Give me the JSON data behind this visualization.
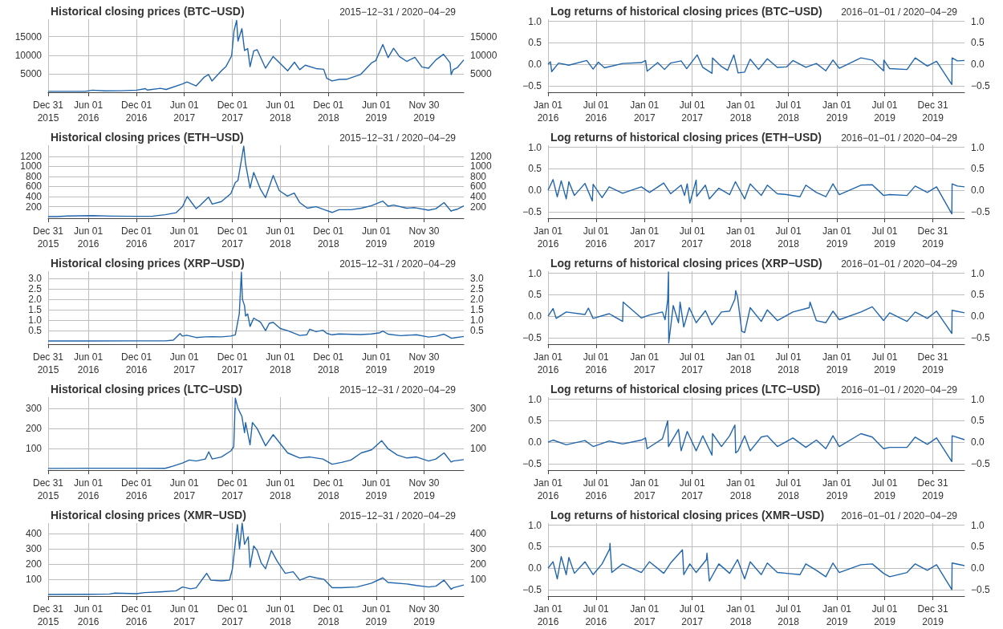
{
  "chart_data": [
    {
      "type": "line",
      "title": "Historical closing prices (BTC−USD)",
      "subtitle": "2015−12−31 / 2020−04−29",
      "color": "#2166ac",
      "marker": "none",
      "grid": true,
      "x": [
        "2015-12-31",
        "2016-03-01",
        "2016-05-20",
        "2016-06-16",
        "2016-08-02",
        "2016-10-01",
        "2016-12-01",
        "2017-01-04",
        "2017-01-11",
        "2017-03-02",
        "2017-03-24",
        "2017-05-25",
        "2017-06-11",
        "2017-07-16",
        "2017-08-17",
        "2017-09-01",
        "2017-09-14",
        "2017-10-20",
        "2017-11-07",
        "2017-11-28",
        "2017-12-07",
        "2017-12-17",
        "2017-12-22",
        "2018-01-06",
        "2018-01-16",
        "2018-01-28",
        "2018-02-06",
        "2018-02-20",
        "2018-03-05",
        "2018-04-06",
        "2018-05-05",
        "2018-06-29",
        "2018-07-25",
        "2018-08-14",
        "2018-09-04",
        "2018-10-15",
        "2018-11-13",
        "2018-11-25",
        "2018-12-15",
        "2019-01-10",
        "2019-02-08",
        "2019-04-02",
        "2019-05-14",
        "2019-05-30",
        "2019-06-26",
        "2019-07-16",
        "2019-08-06",
        "2019-08-28",
        "2019-09-25",
        "2019-10-26",
        "2019-11-22",
        "2019-12-17",
        "2020-01-14",
        "2020-02-12",
        "2020-03-08",
        "2020-03-12",
        "2020-03-20",
        "2020-04-05",
        "2020-04-29"
      ],
      "values": [
        430,
        435,
        445,
        750,
        560,
        610,
        750,
        1150,
        780,
        1250,
        940,
        2400,
        2950,
        1900,
        4300,
        4900,
        3200,
        5900,
        7100,
        9900,
        16500,
        19300,
        13800,
        17100,
        11300,
        11800,
        7000,
        11200,
        11500,
        6600,
        9700,
        5900,
        8200,
        6200,
        7400,
        6500,
        6300,
        3900,
        3200,
        3600,
        3650,
        4900,
        8000,
        8600,
        12900,
        9400,
        11900,
        9700,
        8400,
        9500,
        6900,
        6600,
        8800,
        10300,
        8000,
        4900,
        6200,
        6800,
        8800
      ],
      "xlim": [
        "2015-12-31",
        "2020-04-29"
      ],
      "xticks": [
        {
          "value": "2015-12-31",
          "label": "Dec 31\n2015"
        },
        {
          "value": "2016-06-01",
          "label": "Jun 01\n2016"
        },
        {
          "value": "2016-12-01",
          "label": "Dec 01\n2016"
        },
        {
          "value": "2017-06-01",
          "label": "Jun 01\n2017"
        },
        {
          "value": "2017-12-01",
          "label": "Dec 01\n2017"
        },
        {
          "value": "2018-06-01",
          "label": "Jun 01\n2018"
        },
        {
          "value": "2018-12-01",
          "label": "Dec 01\n2018"
        },
        {
          "value": "2019-06-01",
          "label": "Jun 01\n2019"
        },
        {
          "value": "2019-11-30",
          "label": "Nov 30\n2019"
        }
      ],
      "ylim": [
        200,
        19600
      ],
      "yticks": [
        5000,
        10000,
        15000
      ],
      "y2lim": [
        200,
        19600
      ],
      "y2ticks": [
        5000,
        10000,
        15000
      ]
    },
    {
      "type": "line",
      "title": "Log returns of historical closing prices (BTC−USD)",
      "subtitle": "2016−01−01 / 2020−04−29",
      "color": "#2166ac",
      "marker": "none",
      "grid": true,
      "x": [
        "2016-01-01",
        "2016-01-10",
        "2016-01-15",
        "2016-02-10",
        "2016-03-20",
        "2016-05-27",
        "2016-06-20",
        "2016-07-10",
        "2016-08-02",
        "2016-10-10",
        "2016-12-20",
        "2017-01-05",
        "2017-01-11",
        "2017-02-20",
        "2017-03-18",
        "2017-04-10",
        "2017-05-20",
        "2017-06-10",
        "2017-07-20",
        "2017-08-10",
        "2017-09-14",
        "2017-09-16",
        "2017-10-20",
        "2017-11-12",
        "2017-12-06",
        "2017-12-22",
        "2018-01-16",
        "2018-02-06",
        "2018-03-10",
        "2018-04-12",
        "2018-05-20",
        "2018-06-24",
        "2018-07-18",
        "2018-09-05",
        "2018-10-15",
        "2018-11-20",
        "2018-12-17",
        "2019-01-10",
        "2019-04-02",
        "2019-05-15",
        "2019-06-27",
        "2019-06-28",
        "2019-07-20",
        "2019-09-24",
        "2019-10-25",
        "2019-12-10",
        "2020-01-14",
        "2020-03-12",
        "2020-03-13",
        "2020-04-02",
        "2020-04-29"
      ],
      "values": [
        0,
        0.06,
        -0.17,
        0.03,
        -0.02,
        0.09,
        -0.11,
        0.05,
        -0.08,
        0.02,
        0.04,
        0.09,
        -0.16,
        0.04,
        -0.12,
        0.03,
        0.08,
        -0.1,
        0.22,
        -0.07,
        -0.21,
        0.15,
        -0.05,
        -0.14,
        0.22,
        -0.2,
        -0.18,
        0.12,
        -0.12,
        0.13,
        -0.07,
        -0.06,
        0.09,
        -0.07,
        0.02,
        -0.15,
        0.1,
        -0.09,
        0.15,
        0.1,
        -0.15,
        0.1,
        -0.1,
        -0.12,
        0.15,
        -0.04,
        0.07,
        -0.47,
        0.15,
        0.08,
        0.09
      ],
      "xlim": [
        "2016-01-01",
        "2020-04-29"
      ],
      "xticks": [
        {
          "value": "2016-01-01",
          "label": "Jan 01\n2016"
        },
        {
          "value": "2016-07-01",
          "label": "Jul 01\n2016"
        },
        {
          "value": "2017-01-01",
          "label": "Jan 01\n2017"
        },
        {
          "value": "2017-07-01",
          "label": "Jul 01\n2017"
        },
        {
          "value": "2018-01-01",
          "label": "Jan 01\n2018"
        },
        {
          "value": "2018-07-01",
          "label": "Jul 01\n2018"
        },
        {
          "value": "2019-01-01",
          "label": "Jan 01\n2019"
        },
        {
          "value": "2019-07-01",
          "label": "Jul 01\n2019"
        },
        {
          "value": "2019-12-31",
          "label": "Dec 31\n2019"
        }
      ],
      "ylim": [
        -0.65,
        1.05
      ],
      "yticks": [
        {
          "value": -0.5,
          "label": "−0.5"
        },
        {
          "value": 0,
          "label": "0.0"
        },
        0.5,
        {
          "value": 1,
          "label": "1.0"
        }
      ],
      "y2lim": [
        -0.65,
        1.05
      ],
      "y2ticks": [
        {
          "value": -0.5,
          "label": "−0.5"
        },
        {
          "value": 0,
          "label": "0.0"
        },
        0.5,
        {
          "value": 1,
          "label": "1.0"
        }
      ]
    },
    {
      "type": "line",
      "title": "Historical closing prices (ETH−USD)",
      "subtitle": "2015−12−31 / 2020−04−29",
      "color": "#2166ac",
      "marker": "none",
      "grid": true,
      "x": [
        "2015-12-31",
        "2016-02-01",
        "2016-03-13",
        "2016-06-17",
        "2016-09-01",
        "2016-12-01",
        "2017-02-01",
        "2017-03-20",
        "2017-05-01",
        "2017-05-25",
        "2017-06-12",
        "2017-07-16",
        "2017-08-01",
        "2017-09-01",
        "2017-09-15",
        "2017-10-20",
        "2017-11-25",
        "2017-12-12",
        "2017-12-22",
        "2018-01-13",
        "2018-01-20",
        "2018-02-06",
        "2018-02-20",
        "2018-03-18",
        "2018-04-06",
        "2018-05-05",
        "2018-05-28",
        "2018-06-28",
        "2018-07-24",
        "2018-08-14",
        "2018-09-12",
        "2018-10-15",
        "2018-11-20",
        "2018-12-15",
        "2019-01-10",
        "2019-02-25",
        "2019-04-05",
        "2019-05-14",
        "2019-06-26",
        "2019-07-16",
        "2019-08-06",
        "2019-09-25",
        "2019-10-26",
        "2019-12-17",
        "2020-01-14",
        "2020-02-14",
        "2020-03-12",
        "2020-03-20",
        "2020-04-05",
        "2020-04-29"
      ],
      "values": [
        0.9,
        2.5,
        14,
        21,
        12,
        8,
        11,
        40,
        80,
        200,
        400,
        160,
        230,
        390,
        250,
        300,
        460,
        680,
        720,
        1400,
        1050,
        570,
        880,
        540,
        380,
        820,
        520,
        410,
        470,
        280,
        170,
        200,
        130,
        85,
        140,
        140,
        170,
        220,
        310,
        210,
        230,
        170,
        180,
        130,
        160,
        280,
        110,
        130,
        150,
        215
      ],
      "xlim": [
        "2015-12-31",
        "2020-04-29"
      ],
      "xticks": [
        {
          "value": "2015-12-31",
          "label": "Dec 31\n2015"
        },
        {
          "value": "2016-06-01",
          "label": "Jun 01\n2016"
        },
        {
          "value": "2016-12-01",
          "label": "Dec 01\n2016"
        },
        {
          "value": "2017-06-01",
          "label": "Jun 01\n2017"
        },
        {
          "value": "2017-12-01",
          "label": "Dec 01\n2017"
        },
        {
          "value": "2018-06-01",
          "label": "Jun 01\n2018"
        },
        {
          "value": "2018-12-01",
          "label": "Dec 01\n2018"
        },
        {
          "value": "2019-06-01",
          "label": "Jun 01\n2019"
        },
        {
          "value": "2019-11-30",
          "label": "Nov 30\n2019"
        }
      ],
      "ylim": [
        -30,
        1420
      ],
      "yticks": [
        200,
        400,
        600,
        800,
        1000,
        1200
      ],
      "y2lim": [
        -30,
        1420
      ],
      "y2ticks": [
        200,
        400,
        600,
        800,
        1000,
        1200
      ]
    },
    {
      "type": "line",
      "title": "Log returns of historical closing prices (ETH−USD)",
      "subtitle": "2016−01−01 / 2020−04−29",
      "color": "#2166ac",
      "marker": "none",
      "grid": true,
      "x": [
        "2016-01-01",
        "2016-01-20",
        "2016-02-05",
        "2016-02-20",
        "2016-03-10",
        "2016-03-20",
        "2016-04-10",
        "2016-05-20",
        "2016-06-17",
        "2016-06-20",
        "2016-07-24",
        "2016-08-20",
        "2016-10-10",
        "2016-12-20",
        "2017-01-20",
        "2017-03-15",
        "2017-04-10",
        "2017-05-20",
        "2017-06-02",
        "2017-06-12",
        "2017-06-22",
        "2017-07-16",
        "2017-07-18",
        "2017-08-20",
        "2017-09-04",
        "2017-10-10",
        "2017-11-20",
        "2017-12-12",
        "2018-01-16",
        "2018-02-06",
        "2018-03-20",
        "2018-04-12",
        "2018-05-20",
        "2018-06-24",
        "2018-08-14",
        "2018-09-05",
        "2018-10-15",
        "2018-11-20",
        "2018-12-17",
        "2019-01-10",
        "2019-04-02",
        "2019-05-15",
        "2019-06-27",
        "2019-07-20",
        "2019-09-24",
        "2019-10-25",
        "2019-12-10",
        "2020-01-14",
        "2020-03-12",
        "2020-03-13",
        "2020-04-02",
        "2020-04-29"
      ],
      "values": [
        0,
        0.25,
        -0.15,
        0.22,
        -0.2,
        0.2,
        -0.12,
        0.16,
        -0.25,
        0.14,
        -0.17,
        0.08,
        -0.07,
        0.08,
        -0.05,
        0.17,
        -0.08,
        0.12,
        -0.12,
        0.15,
        -0.3,
        0.24,
        -0.14,
        0.12,
        -0.2,
        0.05,
        -0.1,
        0.2,
        -0.2,
        0.15,
        -0.12,
        0.12,
        -0.08,
        -0.1,
        -0.15,
        0.12,
        -0.05,
        -0.15,
        0.15,
        -0.1,
        0.12,
        0.13,
        -0.12,
        -0.1,
        -0.12,
        0.1,
        -0.05,
        0.08,
        -0.55,
        0.15,
        0.1,
        0.08
      ],
      "xlim": [
        "2016-01-01",
        "2020-04-29"
      ],
      "xticks": [
        {
          "value": "2016-01-01",
          "label": "Jan 01\n2016"
        },
        {
          "value": "2016-07-01",
          "label": "Jul 01\n2016"
        },
        {
          "value": "2017-01-01",
          "label": "Jan 01\n2017"
        },
        {
          "value": "2017-07-01",
          "label": "Jul 01\n2017"
        },
        {
          "value": "2018-01-01",
          "label": "Jan 01\n2018"
        },
        {
          "value": "2018-07-01",
          "label": "Jul 01\n2018"
        },
        {
          "value": "2019-01-01",
          "label": "Jan 01\n2019"
        },
        {
          "value": "2019-07-01",
          "label": "Jul 01\n2019"
        },
        {
          "value": "2019-12-31",
          "label": "Dec 31\n2019"
        }
      ],
      "ylim": [
        -0.65,
        1.05
      ],
      "yticks": [
        {
          "value": -0.5,
          "label": "−0.5"
        },
        {
          "value": 0,
          "label": "0.0"
        },
        0.5,
        {
          "value": 1,
          "label": "1.0"
        }
      ],
      "y2lim": [
        -0.65,
        1.05
      ],
      "y2ticks": [
        {
          "value": -0.5,
          "label": "−0.5"
        },
        {
          "value": 0,
          "label": "0.0"
        },
        0.5,
        {
          "value": 1,
          "label": "1.0"
        }
      ]
    },
    {
      "type": "line",
      "title": "Historical closing prices (XRP−USD)",
      "subtitle": "2015−12−31 / 2020−04−29",
      "color": "#2166ac",
      "marker": "none",
      "grid": true,
      "x": [
        "2015-12-31",
        "2016-06-01",
        "2016-12-01",
        "2017-03-20",
        "2017-04-20",
        "2017-05-16",
        "2017-05-24",
        "2017-06-10",
        "2017-07-16",
        "2017-08-20",
        "2017-09-15",
        "2017-10-20",
        "2017-11-25",
        "2017-12-12",
        "2017-12-21",
        "2017-12-27",
        "2018-01-04",
        "2018-01-08",
        "2018-01-16",
        "2018-01-20",
        "2018-01-28",
        "2018-02-06",
        "2018-02-20",
        "2018-03-18",
        "2018-04-06",
        "2018-04-20",
        "2018-05-05",
        "2018-06-01",
        "2018-06-29",
        "2018-08-14",
        "2018-09-10",
        "2018-09-21",
        "2018-10-15",
        "2018-11-10",
        "2018-11-25",
        "2018-12-15",
        "2019-01-10",
        "2019-04-02",
        "2019-05-14",
        "2019-06-15",
        "2019-06-26",
        "2019-07-16",
        "2019-09-01",
        "2019-11-01",
        "2019-12-17",
        "2020-01-14",
        "2020-02-14",
        "2020-03-12",
        "2020-03-20",
        "2020-04-29"
      ],
      "values": [
        0.006,
        0.006,
        0.007,
        0.008,
        0.04,
        0.36,
        0.24,
        0.28,
        0.17,
        0.2,
        0.21,
        0.2,
        0.24,
        0.3,
        0.9,
        1.3,
        3.3,
        2.0,
        1.7,
        1.2,
        1.3,
        0.7,
        1.1,
        0.9,
        0.5,
        0.85,
        0.9,
        0.6,
        0.5,
        0.27,
        0.3,
        0.57,
        0.45,
        0.52,
        0.37,
        0.3,
        0.34,
        0.31,
        0.34,
        0.4,
        0.48,
        0.33,
        0.26,
        0.3,
        0.19,
        0.23,
        0.33,
        0.14,
        0.15,
        0.22
      ],
      "xlim": [
        "2015-12-31",
        "2020-04-29"
      ],
      "xticks": [
        {
          "value": "2015-12-31",
          "label": "Dec 31\n2015"
        },
        {
          "value": "2016-06-01",
          "label": "Jun 01\n2016"
        },
        {
          "value": "2016-12-01",
          "label": "Dec 01\n2016"
        },
        {
          "value": "2017-06-01",
          "label": "Jun 01\n2017"
        },
        {
          "value": "2017-12-01",
          "label": "Dec 01\n2017"
        },
        {
          "value": "2018-06-01",
          "label": "Jun 01\n2018"
        },
        {
          "value": "2018-12-01",
          "label": "Dec 01\n2018"
        },
        {
          "value": "2019-06-01",
          "label": "Jun 01\n2019"
        },
        {
          "value": "2019-11-30",
          "label": "Nov 30\n2019"
        }
      ],
      "ylim": [
        -0.15,
        3.35
      ],
      "yticks": [
        0.5,
        {
          "value": 1,
          "label": "1.0"
        },
        1.5,
        {
          "value": 2,
          "label": "2.0"
        },
        2.5,
        {
          "value": 3,
          "label": "3.0"
        }
      ],
      "y2lim": [
        -0.15,
        3.35
      ],
      "y2ticks": [
        0.5,
        {
          "value": 1,
          "label": "1.0"
        },
        1.5,
        {
          "value": 2,
          "label": "2.0"
        },
        2.5,
        {
          "value": 3,
          "label": "3.0"
        }
      ]
    },
    {
      "type": "line",
      "title": "Log returns of historical closing prices (XRP−USD)",
      "subtitle": "2016−01−01 / 2020−04−29",
      "color": "#2166ac",
      "marker": "none",
      "grid": true,
      "x": [
        "2016-01-01",
        "2016-01-20",
        "2016-02-01",
        "2016-03-10",
        "2016-05-20",
        "2016-06-02",
        "2016-06-20",
        "2016-08-20",
        "2016-10-10",
        "2016-10-12",
        "2016-12-20",
        "2017-01-20",
        "2017-03-10",
        "2017-03-20",
        "2017-03-30",
        "2017-04-02",
        "2017-04-03",
        "2017-04-20",
        "2017-05-10",
        "2017-05-16",
        "2017-05-30",
        "2017-06-20",
        "2017-07-16",
        "2017-08-20",
        "2017-09-14",
        "2017-10-20",
        "2017-11-20",
        "2017-12-10",
        "2017-12-13",
        "2017-12-20",
        "2018-01-05",
        "2018-01-16",
        "2018-02-06",
        "2018-03-20",
        "2018-04-12",
        "2018-05-20",
        "2018-07-18",
        "2018-09-18",
        "2018-09-21",
        "2018-10-15",
        "2018-11-20",
        "2018-12-17",
        "2019-01-10",
        "2019-04-02",
        "2019-05-15",
        "2019-06-27",
        "2019-07-20",
        "2019-09-24",
        "2019-10-25",
        "2019-12-10",
        "2020-01-14",
        "2020-03-12",
        "2020-03-13",
        "2020-04-29"
      ],
      "values": [
        0,
        0.18,
        -0.05,
        0.1,
        0.04,
        0.19,
        -0.05,
        0.06,
        -0.12,
        0.33,
        -0.04,
        0.03,
        0.1,
        -0.08,
        0.38,
        1.03,
        -0.62,
        0.25,
        -0.15,
        0.33,
        -0.25,
        0.2,
        -0.15,
        0.13,
        -0.2,
        0.1,
        0.12,
        0.4,
        0.6,
        0.45,
        -0.35,
        -0.38,
        0.2,
        -0.12,
        0.15,
        -0.1,
        0.1,
        0.2,
        0.33,
        -0.1,
        -0.15,
        0.12,
        -0.08,
        0.1,
        0.22,
        -0.1,
        0.08,
        -0.12,
        0.1,
        -0.05,
        0.12,
        -0.4,
        0.14,
        0.08
      ],
      "xlim": [
        "2016-01-01",
        "2020-04-29"
      ],
      "xticks": [
        {
          "value": "2016-01-01",
          "label": "Jan 01\n2016"
        },
        {
          "value": "2016-07-01",
          "label": "Jul 01\n2016"
        },
        {
          "value": "2017-01-01",
          "label": "Jan 01\n2017"
        },
        {
          "value": "2017-07-01",
          "label": "Jul 01\n2017"
        },
        {
          "value": "2018-01-01",
          "label": "Jan 01\n2018"
        },
        {
          "value": "2018-07-01",
          "label": "Jul 01\n2018"
        },
        {
          "value": "2019-01-01",
          "label": "Jan 01\n2019"
        },
        {
          "value": "2019-07-01",
          "label": "Jul 01\n2019"
        },
        {
          "value": "2019-12-31",
          "label": "Dec 31\n2019"
        }
      ],
      "ylim": [
        -0.65,
        1.05
      ],
      "yticks": [
        {
          "value": -0.5,
          "label": "−0.5"
        },
        {
          "value": 0,
          "label": "0.0"
        },
        0.5,
        {
          "value": 1,
          "label": "1.0"
        }
      ],
      "y2lim": [
        -0.65,
        1.05
      ],
      "y2ticks": [
        {
          "value": -0.5,
          "label": "−0.5"
        },
        {
          "value": 0,
          "label": "0.0"
        },
        0.5,
        {
          "value": 1,
          "label": "1.0"
        }
      ]
    },
    {
      "type": "line",
      "title": "Historical closing prices (LTC−USD)",
      "subtitle": "2015−12−31 / 2020−04−29",
      "color": "#2166ac",
      "marker": "none",
      "grid": true,
      "x": [
        "2015-12-31",
        "2016-06-01",
        "2016-12-01",
        "2017-03-20",
        "2017-04-20",
        "2017-05-25",
        "2017-06-20",
        "2017-07-16",
        "2017-08-20",
        "2017-09-02",
        "2017-09-15",
        "2017-10-20",
        "2017-11-25",
        "2017-12-06",
        "2017-12-12",
        "2017-12-22",
        "2018-01-06",
        "2018-01-16",
        "2018-01-20",
        "2018-02-06",
        "2018-02-15",
        "2018-03-05",
        "2018-04-06",
        "2018-05-05",
        "2018-06-29",
        "2018-08-14",
        "2018-09-21",
        "2018-11-10",
        "2018-12-15",
        "2019-01-20",
        "2019-02-25",
        "2019-04-05",
        "2019-05-14",
        "2019-06-22",
        "2019-07-16",
        "2019-08-20",
        "2019-09-25",
        "2019-11-01",
        "2019-12-17",
        "2020-01-14",
        "2020-02-14",
        "2020-03-12",
        "2020-03-20",
        "2020-04-29"
      ],
      "values": [
        3.5,
        4.5,
        4.4,
        4,
        15,
        30,
        45,
        40,
        50,
        85,
        50,
        60,
        90,
        110,
        350,
        300,
        260,
        180,
        230,
        120,
        230,
        200,
        115,
        170,
        80,
        55,
        60,
        50,
        24,
        33,
        45,
        80,
        95,
        140,
        100,
        70,
        55,
        60,
        40,
        50,
        80,
        35,
        40,
        47
      ],
      "xlim": [
        "2015-12-31",
        "2020-04-29"
      ],
      "xticks": [
        {
          "value": "2015-12-31",
          "label": "Dec 31\n2015"
        },
        {
          "value": "2016-06-01",
          "label": "Jun 01\n2016"
        },
        {
          "value": "2016-12-01",
          "label": "Dec 01\n2016"
        },
        {
          "value": "2017-06-01",
          "label": "Jun 01\n2017"
        },
        {
          "value": "2017-12-01",
          "label": "Dec 01\n2017"
        },
        {
          "value": "2018-06-01",
          "label": "Jun 01\n2018"
        },
        {
          "value": "2018-12-01",
          "label": "Dec 01\n2018"
        },
        {
          "value": "2019-06-01",
          "label": "Jun 01\n2019"
        },
        {
          "value": "2019-11-30",
          "label": "Nov 30\n2019"
        }
      ],
      "ylim": [
        -5,
        355
      ],
      "yticks": [
        100,
        200,
        300
      ],
      "y2lim": [
        -5,
        355
      ],
      "y2ticks": [
        100,
        200,
        300
      ]
    },
    {
      "type": "line",
      "title": "Log returns of historical closing prices (LTC−USD)",
      "subtitle": "2016−01−01 / 2020−04−29",
      "color": "#2166ac",
      "marker": "none",
      "grid": true,
      "x": [
        "2016-01-01",
        "2016-01-20",
        "2016-03-10",
        "2016-05-20",
        "2016-06-20",
        "2016-08-20",
        "2016-10-10",
        "2016-12-20",
        "2017-01-05",
        "2017-01-11",
        "2017-03-10",
        "2017-03-30",
        "2017-04-02",
        "2017-05-10",
        "2017-05-20",
        "2017-06-12",
        "2017-07-16",
        "2017-08-10",
        "2017-09-14",
        "2017-09-16",
        "2017-10-20",
        "2017-11-20",
        "2017-12-10",
        "2017-12-13",
        "2017-12-22",
        "2018-01-16",
        "2018-02-06",
        "2018-03-20",
        "2018-04-12",
        "2018-05-20",
        "2018-07-18",
        "2018-09-05",
        "2018-10-15",
        "2018-11-20",
        "2018-12-17",
        "2019-01-10",
        "2019-04-02",
        "2019-05-15",
        "2019-06-27",
        "2019-07-20",
        "2019-09-24",
        "2019-10-25",
        "2019-12-10",
        "2020-01-14",
        "2020-03-12",
        "2020-03-13",
        "2020-04-29"
      ],
      "values": [
        0,
        0.05,
        -0.06,
        0.04,
        -0.1,
        0.03,
        -0.04,
        0.05,
        0.1,
        -0.15,
        0.08,
        0.5,
        -0.1,
        0.3,
        -0.2,
        0.25,
        -0.2,
        0.15,
        -0.3,
        0.2,
        -0.1,
        0.15,
        0.4,
        -0.25,
        -0.2,
        0.15,
        -0.2,
        0.12,
        0.15,
        -0.1,
        0.1,
        -0.12,
        0.05,
        -0.15,
        0.15,
        -0.1,
        0.2,
        0.12,
        -0.15,
        -0.12,
        -0.12,
        0.12,
        -0.05,
        0.1,
        -0.45,
        0.15,
        0.06
      ],
      "xlim": [
        "2016-01-01",
        "2020-04-29"
      ],
      "xticks": [
        {
          "value": "2016-01-01",
          "label": "Jan 01\n2016"
        },
        {
          "value": "2016-07-01",
          "label": "Jul 01\n2016"
        },
        {
          "value": "2017-01-01",
          "label": "Jan 01\n2017"
        },
        {
          "value": "2017-07-01",
          "label": "Jul 01\n2017"
        },
        {
          "value": "2018-01-01",
          "label": "Jan 01\n2018"
        },
        {
          "value": "2018-07-01",
          "label": "Jul 01\n2018"
        },
        {
          "value": "2019-01-01",
          "label": "Jan 01\n2019"
        },
        {
          "value": "2019-07-01",
          "label": "Jul 01\n2019"
        },
        {
          "value": "2019-12-31",
          "label": "Dec 31\n2019"
        }
      ],
      "ylim": [
        -0.65,
        1.05
      ],
      "yticks": [
        {
          "value": -0.5,
          "label": "−0.5"
        },
        {
          "value": 0,
          "label": "0.0"
        },
        0.5,
        {
          "value": 1,
          "label": "1.0"
        }
      ],
      "y2lim": [
        -0.65,
        1.05
      ],
      "y2ticks": [
        {
          "value": -0.5,
          "label": "−0.5"
        },
        {
          "value": 0,
          "label": "0.0"
        },
        0.5,
        {
          "value": 1,
          "label": "1.0"
        }
      ]
    },
    {
      "type": "line",
      "title": "Historical closing prices (XMR−USD)",
      "subtitle": "2015−12−31 / 2020−04−29",
      "color": "#2166ac",
      "marker": "none",
      "grid": true,
      "x": [
        "2015-12-31",
        "2016-06-01",
        "2016-08-20",
        "2016-09-10",
        "2016-12-01",
        "2017-01-01",
        "2017-03-01",
        "2017-05-01",
        "2017-05-25",
        "2017-06-25",
        "2017-07-16",
        "2017-08-25",
        "2017-09-10",
        "2017-10-20",
        "2017-11-20",
        "2017-12-01",
        "2017-12-20",
        "2017-12-28",
        "2018-01-07",
        "2018-01-16",
        "2018-01-30",
        "2018-02-06",
        "2018-02-20",
        "2018-03-05",
        "2018-03-20",
        "2018-04-06",
        "2018-04-28",
        "2018-05-20",
        "2018-06-20",
        "2018-07-20",
        "2018-08-14",
        "2018-09-20",
        "2018-10-15",
        "2018-11-15",
        "2018-12-15",
        "2019-01-20",
        "2019-03-20",
        "2019-05-14",
        "2019-06-26",
        "2019-07-16",
        "2019-09-25",
        "2019-11-01",
        "2019-12-17",
        "2020-01-14",
        "2020-02-14",
        "2020-03-12",
        "2020-03-20",
        "2020-04-29"
      ],
      "values": [
        0.5,
        1.5,
        4,
        10,
        6,
        13,
        18,
        25,
        50,
        38,
        45,
        140,
        95,
        90,
        95,
        170,
        460,
        300,
        470,
        330,
        380,
        180,
        320,
        290,
        210,
        170,
        290,
        220,
        140,
        150,
        95,
        120,
        110,
        100,
        45,
        45,
        50,
        75,
        110,
        80,
        70,
        60,
        50,
        55,
        95,
        35,
        45,
        63
      ],
      "xlim": [
        "2015-12-31",
        "2020-04-29"
      ],
      "xticks": [
        {
          "value": "2015-12-31",
          "label": "Dec 31\n2015"
        },
        {
          "value": "2016-06-01",
          "label": "Jun 01\n2016"
        },
        {
          "value": "2016-12-01",
          "label": "Dec 01\n2016"
        },
        {
          "value": "2017-06-01",
          "label": "Jun 01\n2017"
        },
        {
          "value": "2017-12-01",
          "label": "Dec 01\n2017"
        },
        {
          "value": "2018-06-01",
          "label": "Jun 01\n2018"
        },
        {
          "value": "2018-12-01",
          "label": "Dec 01\n2018"
        },
        {
          "value": "2019-06-01",
          "label": "Jun 01\n2019"
        },
        {
          "value": "2019-11-30",
          "label": "Nov 30\n2019"
        }
      ],
      "ylim": [
        -10,
        470
      ],
      "yticks": [
        100,
        200,
        300,
        400
      ],
      "y2lim": [
        -10,
        470
      ],
      "y2ticks": [
        100,
        200,
        300,
        400
      ]
    },
    {
      "type": "line",
      "title": "Log returns of historical closing prices (XMR−USD)",
      "subtitle": "2016−01−01 / 2020−04−29",
      "color": "#2166ac",
      "marker": "none",
      "grid": true,
      "x": [
        "2016-01-01",
        "2016-01-20",
        "2016-02-05",
        "2016-02-20",
        "2016-03-10",
        "2016-03-20",
        "2016-04-10",
        "2016-05-20",
        "2016-06-20",
        "2016-07-24",
        "2016-08-22",
        "2016-08-23",
        "2016-08-30",
        "2016-10-10",
        "2016-12-20",
        "2017-01-20",
        "2017-03-15",
        "2017-04-10",
        "2017-05-25",
        "2017-05-30",
        "2017-06-22",
        "2017-07-16",
        "2017-08-24",
        "2017-08-26",
        "2017-09-04",
        "2017-10-10",
        "2017-11-20",
        "2017-12-20",
        "2018-01-16",
        "2018-02-06",
        "2018-03-20",
        "2018-04-12",
        "2018-05-20",
        "2018-06-24",
        "2018-08-14",
        "2018-09-05",
        "2018-10-15",
        "2018-11-20",
        "2018-12-17",
        "2019-01-10",
        "2019-04-02",
        "2019-05-15",
        "2019-06-27",
        "2019-07-20",
        "2019-09-24",
        "2019-10-25",
        "2019-12-10",
        "2020-01-14",
        "2020-03-12",
        "2020-03-13",
        "2020-04-29"
      ],
      "values": [
        0,
        0.15,
        -0.25,
        0.27,
        -0.15,
        0.25,
        -0.12,
        0.15,
        -0.15,
        0.1,
        0.45,
        0.58,
        -0.1,
        0.1,
        -0.1,
        0.15,
        -0.12,
        0.12,
        0.43,
        -0.15,
        0.1,
        -0.1,
        0.2,
        0.35,
        -0.3,
        0.1,
        -0.12,
        0.2,
        -0.25,
        0.15,
        -0.15,
        0.12,
        -0.1,
        -0.12,
        -0.15,
        0.1,
        -0.05,
        -0.2,
        0.12,
        -0.1,
        0.08,
        0.1,
        -0.12,
        -0.2,
        -0.1,
        0.1,
        -0.05,
        0.08,
        -0.5,
        0.12,
        0.06
      ],
      "xlim": [
        "2016-01-01",
        "2020-04-29"
      ],
      "xticks": [
        {
          "value": "2016-01-01",
          "label": "Jan 01\n2016"
        },
        {
          "value": "2016-07-01",
          "label": "Jul 01\n2016"
        },
        {
          "value": "2017-01-01",
          "label": "Jan 01\n2017"
        },
        {
          "value": "2017-07-01",
          "label": "Jul 01\n2017"
        },
        {
          "value": "2018-01-01",
          "label": "Jan 01\n2018"
        },
        {
          "value": "2018-07-01",
          "label": "Jul 01\n2018"
        },
        {
          "value": "2019-01-01",
          "label": "Jan 01\n2019"
        },
        {
          "value": "2019-07-01",
          "label": "Jul 01\n2019"
        },
        {
          "value": "2019-12-31",
          "label": "Dec 31\n2019"
        }
      ],
      "ylim": [
        -0.65,
        1.05
      ],
      "yticks": [
        {
          "value": -0.5,
          "label": "−0.5"
        },
        {
          "value": 0,
          "label": "0.0"
        },
        0.5,
        {
          "value": 1,
          "label": "1.0"
        }
      ],
      "y2lim": [
        -0.65,
        1.05
      ],
      "y2ticks": [
        {
          "value": -0.5,
          "label": "−0.5"
        },
        {
          "value": 0,
          "label": "0.0"
        },
        0.5,
        {
          "value": 1,
          "label": "1.0"
        }
      ]
    }
  ]
}
